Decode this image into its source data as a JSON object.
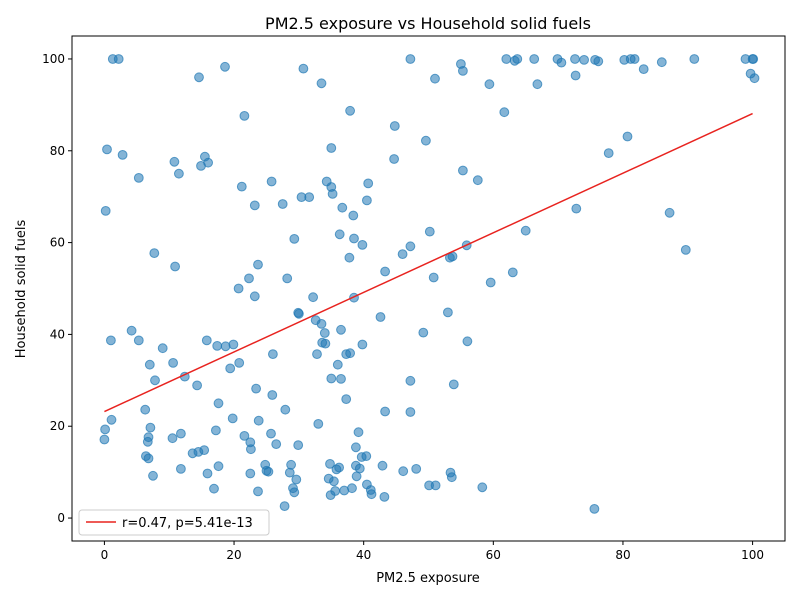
{
  "chart_data": {
    "type": "scatter",
    "title": "PM2.5 exposure vs Household solid fuels",
    "xlabel": "PM2.5 exposure",
    "ylabel": "Household solid fuels",
    "xlim": [
      -5,
      105
    ],
    "ylim": [
      -5,
      105
    ],
    "xticks": [
      0,
      20,
      40,
      60,
      80,
      100
    ],
    "yticks": [
      0,
      20,
      40,
      60,
      80,
      100
    ],
    "grid": false,
    "legend_position": "lower-left",
    "series": [
      {
        "kind": "scatter",
        "color": "#1f77b4",
        "points": [
          [
            1.3,
            100
          ],
          [
            2.2,
            100
          ],
          [
            14.6,
            96
          ],
          [
            18.6,
            98.3
          ],
          [
            30.7,
            97.9
          ],
          [
            33.5,
            94.7
          ],
          [
            47.2,
            100
          ],
          [
            51,
            95.7
          ],
          [
            55,
            98.9
          ],
          [
            55.3,
            97.4
          ],
          [
            59.4,
            94.5
          ],
          [
            62,
            100
          ],
          [
            63.3,
            99.6
          ],
          [
            63.7,
            100
          ],
          [
            66.3,
            100
          ],
          [
            66.8,
            94.5
          ],
          [
            69.9,
            100
          ],
          [
            70.5,
            99.2
          ],
          [
            72.6,
            100
          ],
          [
            72.7,
            96.4
          ],
          [
            74,
            99.8
          ],
          [
            75.7,
            99.8
          ],
          [
            76.2,
            99.5
          ],
          [
            80.2,
            99.8
          ],
          [
            81.2,
            100
          ],
          [
            81.8,
            100
          ],
          [
            83.2,
            97.8
          ],
          [
            86,
            99.3
          ],
          [
            91,
            100
          ],
          [
            98.9,
            100
          ],
          [
            99.7,
            96.8
          ],
          [
            100,
            100
          ],
          [
            100.1,
            100
          ],
          [
            100.3,
            95.8
          ],
          [
            0.4,
            80.3
          ],
          [
            2.8,
            79.1
          ],
          [
            5.3,
            74.1
          ],
          [
            10.8,
            77.6
          ],
          [
            11.5,
            75
          ],
          [
            14.9,
            76.7
          ],
          [
            15.5,
            78.7
          ],
          [
            16,
            77.4
          ],
          [
            21.6,
            87.6
          ],
          [
            21.2,
            72.2
          ],
          [
            25.8,
            73.3
          ],
          [
            23.2,
            68.1
          ],
          [
            27.5,
            68.4
          ],
          [
            30.4,
            69.9
          ],
          [
            31.6,
            69.9
          ],
          [
            34.3,
            73.3
          ],
          [
            35,
            72.1
          ],
          [
            35.2,
            70.6
          ],
          [
            35,
            80.6
          ],
          [
            37.9,
            88.7
          ],
          [
            40.5,
            69.2
          ],
          [
            40.7,
            72.9
          ],
          [
            44.8,
            85.4
          ],
          [
            44.7,
            78.2
          ],
          [
            49.6,
            82.2
          ],
          [
            55.3,
            75.7
          ],
          [
            57.6,
            73.6
          ],
          [
            61.7,
            88.4
          ],
          [
            77.8,
            79.5
          ],
          [
            80.7,
            83.1
          ],
          [
            72.8,
            67.4
          ],
          [
            87.2,
            66.5
          ],
          [
            89.7,
            58.4
          ],
          [
            65,
            62.6
          ],
          [
            63,
            53.5
          ],
          [
            59.6,
            51.3
          ],
          [
            0.2,
            66.9
          ],
          [
            7.7,
            57.7
          ],
          [
            10.9,
            54.8
          ],
          [
            20.7,
            50
          ],
          [
            22.3,
            52.2
          ],
          [
            23.2,
            48.3
          ],
          [
            23.7,
            55.2
          ],
          [
            28.2,
            52.2
          ],
          [
            29.3,
            60.8
          ],
          [
            32.2,
            48.1
          ],
          [
            36.3,
            61.8
          ],
          [
            36.7,
            67.6
          ],
          [
            38.4,
            65.9
          ],
          [
            38.5,
            60.9
          ],
          [
            37.8,
            56.7
          ],
          [
            39.8,
            59.5
          ],
          [
            38.5,
            48
          ],
          [
            43.3,
            53.7
          ],
          [
            46,
            57.5
          ],
          [
            47.2,
            59.2
          ],
          [
            50.2,
            62.4
          ],
          [
            50.8,
            52.4
          ],
          [
            53.3,
            56.7
          ],
          [
            53.7,
            57
          ],
          [
            55.9,
            59.4
          ],
          [
            1,
            38.7
          ],
          [
            4.2,
            40.8
          ],
          [
            5.3,
            38.7
          ],
          [
            9,
            37
          ],
          [
            15.8,
            38.7
          ],
          [
            17.4,
            37.5
          ],
          [
            18.7,
            37.4
          ],
          [
            19.9,
            37.8
          ],
          [
            19.4,
            32.6
          ],
          [
            20.8,
            33.8
          ],
          [
            12.4,
            30.8
          ],
          [
            7,
            33.4
          ],
          [
            10.6,
            33.8
          ],
          [
            7.8,
            30
          ],
          [
            14.3,
            28.9
          ],
          [
            26,
            35.7
          ],
          [
            29.9,
            44.7
          ],
          [
            30,
            44.5
          ],
          [
            32.6,
            43.1
          ],
          [
            33.5,
            42.3
          ],
          [
            34,
            40.3
          ],
          [
            33.6,
            38.2
          ],
          [
            34.1,
            38
          ],
          [
            32.8,
            35.7
          ],
          [
            36.5,
            41
          ],
          [
            37.3,
            35.7
          ],
          [
            37.9,
            35.9
          ],
          [
            39.8,
            37.8
          ],
          [
            36,
            33.4
          ],
          [
            36.5,
            30.3
          ],
          [
            35,
            30.4
          ],
          [
            42.6,
            43.8
          ],
          [
            49.2,
            40.4
          ],
          [
            53,
            44.8
          ],
          [
            56,
            38.5
          ],
          [
            47.2,
            29.9
          ],
          [
            53.9,
            29.1
          ],
          [
            23.4,
            28.2
          ],
          [
            0.1,
            19.3
          ],
          [
            0,
            17.1
          ],
          [
            1.1,
            21.4
          ],
          [
            6.3,
            23.6
          ],
          [
            7.1,
            19.7
          ],
          [
            6.8,
            17.6
          ],
          [
            6.7,
            16.6
          ],
          [
            11.8,
            18.4
          ],
          [
            10.5,
            17.4
          ],
          [
            17.6,
            25
          ],
          [
            19.8,
            21.7
          ],
          [
            17.2,
            19.1
          ],
          [
            21.6,
            17.9
          ],
          [
            22.5,
            16.5
          ],
          [
            22.6,
            15
          ],
          [
            23.8,
            21.2
          ],
          [
            25.9,
            26.8
          ],
          [
            25.7,
            18.4
          ],
          [
            26.5,
            16.1
          ],
          [
            27.9,
            23.6
          ],
          [
            29.9,
            15.9
          ],
          [
            33,
            20.5
          ],
          [
            37.3,
            25.9
          ],
          [
            39.2,
            18.7
          ],
          [
            38.8,
            15.4
          ],
          [
            43.3,
            23.2
          ],
          [
            47.2,
            23.1
          ],
          [
            6.4,
            13.5
          ],
          [
            6.8,
            13
          ],
          [
            7.5,
            9.2
          ],
          [
            11.8,
            10.7
          ],
          [
            13.6,
            14.1
          ],
          [
            14.5,
            14.4
          ],
          [
            15.4,
            14.8
          ],
          [
            15.9,
            9.7
          ],
          [
            17.6,
            11.3
          ],
          [
            16.9,
            6.4
          ],
          [
            22.5,
            9.7
          ],
          [
            23.7,
            5.8
          ],
          [
            24.8,
            11.6
          ],
          [
            25,
            10.3
          ],
          [
            25.3,
            10.1
          ],
          [
            28.6,
            9.9
          ],
          [
            28.8,
            11.6
          ],
          [
            29.1,
            6.5
          ],
          [
            29.3,
            5.6
          ],
          [
            29.6,
            8.4
          ],
          [
            27.8,
            2.6
          ],
          [
            34.8,
            11.8
          ],
          [
            34.6,
            8.6
          ],
          [
            35.4,
            8
          ],
          [
            34.9,
            5
          ],
          [
            35.6,
            5.9
          ],
          [
            35.8,
            10.6
          ],
          [
            36.2,
            11
          ],
          [
            37,
            6
          ],
          [
            38.2,
            6.5
          ],
          [
            38.9,
            9.1
          ],
          [
            38.8,
            11.4
          ],
          [
            39.4,
            10.8
          ],
          [
            39.7,
            13.3
          ],
          [
            40.4,
            13.5
          ],
          [
            40.5,
            7.3
          ],
          [
            41.1,
            6.1
          ],
          [
            41.2,
            5.2
          ],
          [
            42.9,
            11.4
          ],
          [
            43.2,
            4.6
          ],
          [
            46.1,
            10.2
          ],
          [
            48.1,
            10.7
          ],
          [
            50.1,
            7.1
          ],
          [
            51.1,
            7.1
          ],
          [
            53.4,
            9.9
          ],
          [
            53.6,
            8.9
          ],
          [
            58.3,
            6.7
          ],
          [
            75.6,
            2
          ]
        ]
      }
    ],
    "regression_line": {
      "color": "#e8231f",
      "x": [
        0,
        100
      ],
      "y": [
        23.2,
        88.1
      ],
      "label": "r=0.47, p=5.41e-13"
    }
  }
}
